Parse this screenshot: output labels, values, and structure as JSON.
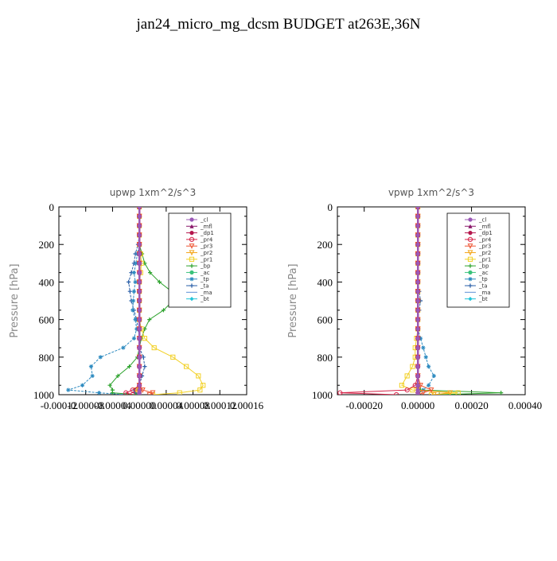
{
  "figure": {
    "title": "jan24_micro_mg_dcsm  BUDGET at263E,36N"
  },
  "legend": [
    {
      "name": "_cl",
      "color": "#9b59b6",
      "marker": "circle"
    },
    {
      "name": "_mfl",
      "color": "#8b1a6b",
      "marker": "triangle"
    },
    {
      "name": "_dp1",
      "color": "#b5174d",
      "marker": "circle"
    },
    {
      "name": "_pr4",
      "color": "#d62046",
      "marker": "circle-open"
    },
    {
      "name": "_pr3",
      "color": "#ee5533",
      "marker": "triangle-open"
    },
    {
      "name": "_pr2",
      "color": "#f4a61d",
      "marker": "triangle-open"
    },
    {
      "name": "_pr1",
      "color": "#f2d024",
      "marker": "square-open"
    },
    {
      "name": "_bp",
      "color": "#2ea32e",
      "marker": "plus"
    },
    {
      "name": "_ac",
      "color": "#39c27a",
      "marker": "circle"
    },
    {
      "name": "_tp",
      "color": "#2e8bc0",
      "marker": "star"
    },
    {
      "name": "_ta",
      "color": "#2a5fa8",
      "marker": "plus"
    },
    {
      "name": "_ma",
      "color": "#5c8fd6",
      "marker": "none"
    },
    {
      "name": "_bt",
      "color": "#22c4d8",
      "marker": "diamond"
    }
  ],
  "chart_data": [
    {
      "type": "line",
      "title": "upwp    1xm^2/s^3",
      "ylabel": "Pressure [hPa]",
      "xlabel": "",
      "xlim": [
        -0.00012,
        0.00016
      ],
      "ylim": [
        1000,
        0
      ],
      "y_inverted": true,
      "y_ticks": [
        "0",
        "200",
        "400",
        "600",
        "800",
        "1000"
      ],
      "x_ticks": [
        "-0.00012",
        "-0.00008",
        "-0.00004",
        "0.00000",
        "0.00004",
        "0.00008",
        "0.00012",
        "0.00016"
      ],
      "legend_position": "top-right",
      "y": [
        0,
        50,
        100,
        150,
        200,
        250,
        300,
        350,
        400,
        450,
        500,
        550,
        600,
        650,
        700,
        750,
        800,
        850,
        900,
        950,
        975,
        990,
        1000
      ],
      "series": [
        {
          "name": "_cl",
          "x": [
            0,
            0,
            0,
            0,
            0,
            0,
            0,
            0,
            0,
            0,
            0,
            0,
            0,
            0,
            0,
            0,
            0,
            0,
            0,
            0,
            0,
            0,
            0
          ]
        },
        {
          "name": "_mfl",
          "x": [
            0,
            0,
            0,
            0,
            0,
            0,
            0,
            0,
            0,
            0,
            0,
            0,
            0,
            0,
            0,
            0,
            0,
            0,
            0,
            0,
            0,
            0,
            0
          ]
        },
        {
          "name": "_dp1",
          "x": [
            0,
            0,
            0,
            0,
            0,
            0,
            0,
            0,
            0,
            0,
            0,
            0,
            0,
            0,
            0,
            0,
            0,
            0,
            0,
            0,
            0,
            0,
            0
          ]
        },
        {
          "name": "_pr4",
          "x": [
            0,
            0,
            0,
            0,
            0,
            0,
            0,
            0,
            0,
            0,
            0,
            0,
            0,
            0,
            0,
            0,
            0,
            0,
            0,
            0,
            -1e-05,
            -2e-05,
            -1e-05
          ]
        },
        {
          "name": "_pr3",
          "x": [
            0,
            0,
            0,
            0,
            0,
            0,
            0,
            0,
            0,
            0,
            0,
            0,
            0,
            0,
            0,
            0,
            0,
            0,
            0,
            0,
            5e-06,
            2e-05,
            1.5e-05
          ]
        },
        {
          "name": "_pr2",
          "x": [
            0,
            0,
            0,
            0,
            0,
            0,
            0,
            0,
            0,
            0,
            0,
            0,
            0,
            0,
            0,
            0,
            0,
            0,
            0,
            0,
            -5e-06,
            0,
            0
          ]
        },
        {
          "name": "_pr1",
          "x": [
            0,
            0,
            0,
            0,
            0,
            2e-06,
            3e-06,
            2e-06,
            0,
            0,
            0,
            0,
            0,
            3e-06,
            8e-06,
            2.2e-05,
            5e-05,
            7e-05,
            8.8e-05,
            9.5e-05,
            9.04e-05,
            6e-05,
            2e-05
          ]
        },
        {
          "name": "_bp",
          "x": [
            0,
            0,
            0,
            0,
            0,
            4e-06,
            8e-06,
            1.6e-05,
            3e-05,
            4.8e-05,
            5e-05,
            3.6e-05,
            1.5e-05,
            8e-06,
            3e-06,
            0,
            -3e-06,
            -1.5e-05,
            -3.2e-05,
            -4.4e-05,
            -4e-05,
            -4e-05,
            -5e-06
          ]
        },
        {
          "name": "_ac",
          "x": [
            0,
            0,
            0,
            0,
            0,
            0,
            0,
            0,
            0,
            0,
            0,
            0,
            0,
            0,
            0,
            0,
            0,
            0,
            0,
            0,
            0,
            0,
            0
          ]
        },
        {
          "name": "_tp",
          "x": [
            0,
            0,
            0,
            0,
            0,
            -3e-06,
            -5e-06,
            -8e-06,
            -6e-06,
            -8e-06,
            -9e-06,
            -1e-05,
            -6e-06,
            -4e-06,
            -8e-06,
            -2.4e-05,
            -5.8e-05,
            -7.2e-05,
            -7e-05,
            -8.5e-05,
            -0.000106,
            -6e-05,
            -2e-05
          ]
        },
        {
          "name": "_ta",
          "x": [
            0,
            0,
            0,
            0,
            -2e-06,
            -6e-06,
            -8e-06,
            -1.2e-05,
            -1.6e-05,
            -1.4e-05,
            -1.2e-05,
            -8e-06,
            -4e-06,
            -2e-06,
            0,
            0,
            6e-06,
            8e-06,
            4e-06,
            0,
            -8e-06,
            -6e-06,
            -2e-06
          ]
        },
        {
          "name": "_ma",
          "x": [
            0,
            0,
            0,
            0,
            0,
            0,
            0,
            0,
            0,
            0,
            0,
            0,
            0,
            0,
            0,
            0,
            0,
            0,
            0,
            0,
            0,
            0,
            0
          ]
        },
        {
          "name": "_bt",
          "x": [
            0,
            0,
            0,
            0,
            0,
            0,
            0,
            0,
            0,
            0,
            0,
            0,
            0,
            0,
            0,
            0,
            0,
            0,
            0,
            0,
            0,
            0,
            0
          ]
        }
      ]
    },
    {
      "type": "line",
      "title": "vpwp    1xm^2/s^3",
      "ylabel": "Pressure [hPa]",
      "xlabel": "",
      "xlim": [
        -0.0003,
        0.0004
      ],
      "ylim": [
        1000,
        0
      ],
      "y_inverted": true,
      "y_ticks": [
        "0",
        "200",
        "400",
        "600",
        "800",
        "1000"
      ],
      "x_ticks": [
        "-0.00020",
        "0.00000",
        "0.00020",
        "0.00040"
      ],
      "legend_position": "top-right",
      "y": [
        0,
        50,
        100,
        150,
        200,
        250,
        300,
        350,
        400,
        450,
        500,
        550,
        600,
        650,
        700,
        750,
        800,
        850,
        900,
        950,
        975,
        990,
        1000
      ],
      "series": [
        {
          "name": "_cl",
          "x": [
            0,
            0,
            0,
            0,
            0,
            0,
            0,
            0,
            0,
            0,
            0,
            0,
            0,
            0,
            0,
            0,
            0,
            0,
            0,
            0,
            0,
            0,
            0
          ]
        },
        {
          "name": "_mfl",
          "x": [
            0,
            0,
            0,
            0,
            0,
            0,
            0,
            0,
            0,
            0,
            0,
            0,
            0,
            0,
            0,
            0,
            0,
            0,
            0,
            0,
            0,
            0,
            0
          ]
        },
        {
          "name": "_dp1",
          "x": [
            0,
            0,
            0,
            0,
            0,
            0,
            0,
            0,
            0,
            0,
            0,
            0,
            0,
            0,
            0,
            0,
            0,
            0,
            0,
            0,
            0,
            0,
            0
          ]
        },
        {
          "name": "_pr4",
          "x": [
            0,
            0,
            0,
            0,
            0,
            0,
            0,
            0,
            0,
            0,
            0,
            0,
            0,
            0,
            0,
            0,
            0,
            0,
            0,
            -1e-05,
            -4e-05,
            -0.00029,
            -8e-05
          ]
        },
        {
          "name": "_pr3",
          "x": [
            0,
            0,
            0,
            0,
            0,
            0,
            0,
            0,
            0,
            0,
            0,
            0,
            0,
            0,
            0,
            0,
            0,
            0,
            0,
            1e-05,
            5e-05,
            2e-05,
            0
          ]
        },
        {
          "name": "_pr2",
          "x": [
            0,
            0,
            0,
            0,
            0,
            0,
            0,
            0,
            0,
            0,
            0,
            0,
            0,
            0,
            0,
            0,
            0,
            0,
            0,
            0,
            0,
            0.00012,
            6e-05
          ]
        },
        {
          "name": "_pr1",
          "x": [
            0,
            0,
            0,
            0,
            0,
            0,
            0,
            0,
            0,
            0,
            0,
            0,
            0,
            0,
            -5e-06,
            -1e-05,
            -1e-05,
            -2e-05,
            -4e-05,
            -6e-05,
            -2e-05,
            0.00015,
            5e-05
          ]
        },
        {
          "name": "_bp",
          "x": [
            0,
            0,
            0,
            0,
            0,
            0,
            0,
            0,
            0,
            0,
            0,
            0,
            0,
            0,
            0,
            0,
            0,
            0,
            0,
            0,
            1e-05,
            0.00031,
            8e-05
          ]
        },
        {
          "name": "_ac",
          "x": [
            0,
            0,
            0,
            0,
            0,
            0,
            0,
            0,
            0,
            0,
            0,
            0,
            0,
            0,
            0,
            0,
            0,
            0,
            0,
            0,
            0,
            0,
            0
          ]
        },
        {
          "name": "_tp",
          "x": [
            0,
            0,
            0,
            0,
            0,
            0,
            0,
            0,
            0,
            0,
            0,
            0,
            0,
            0,
            1e-05,
            2e-05,
            3e-05,
            4e-05,
            6e-05,
            4e-05,
            2e-05,
            0,
            0
          ]
        },
        {
          "name": "_ta",
          "x": [
            0,
            0,
            0,
            0,
            0,
            0,
            0,
            0,
            0,
            5e-06,
            1e-05,
            5e-06,
            0,
            0,
            0,
            0,
            0,
            0,
            0,
            0,
            0,
            0,
            0
          ]
        },
        {
          "name": "_ma",
          "x": [
            0,
            0,
            0,
            0,
            0,
            0,
            0,
            0,
            0,
            0,
            0,
            0,
            0,
            0,
            0,
            0,
            0,
            0,
            0,
            0,
            0,
            0,
            0
          ]
        },
        {
          "name": "_bt",
          "x": [
            0,
            0,
            0,
            0,
            0,
            0,
            0,
            0,
            0,
            0,
            0,
            0,
            0,
            0,
            0,
            0,
            0,
            0,
            0,
            0,
            0,
            0,
            0
          ]
        }
      ]
    }
  ]
}
